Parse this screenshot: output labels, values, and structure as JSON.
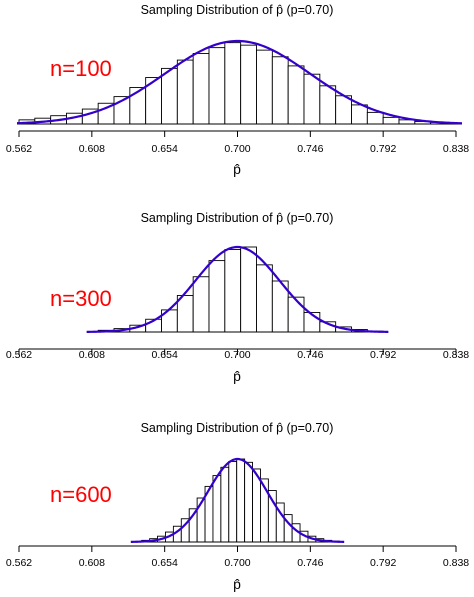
{
  "chart_data": [
    {
      "type": "bar",
      "title": "Sampling Distribution of p̂  (p=0.70)",
      "xlabel": "p̂",
      "n_label": "n=100",
      "n": 100,
      "p": 0.7,
      "xticks": [
        "0.562",
        "0.608",
        "0.654",
        "0.700",
        "0.746",
        "0.792",
        "0.838"
      ],
      "xlim": [
        0.562,
        0.838
      ],
      "bin_width": 0.01,
      "bin_starts": [
        0.562,
        0.572,
        0.582,
        0.592,
        0.602,
        0.612,
        0.622,
        0.632,
        0.642,
        0.652,
        0.662,
        0.672,
        0.682,
        0.692,
        0.702,
        0.712,
        0.722,
        0.732,
        0.742,
        0.752,
        0.762,
        0.772,
        0.782,
        0.792,
        0.802,
        0.812,
        0.822
      ],
      "values": [
        0.05,
        0.07,
        0.1,
        0.13,
        0.18,
        0.25,
        0.33,
        0.44,
        0.56,
        0.67,
        0.77,
        0.85,
        0.92,
        0.98,
        0.95,
        0.89,
        0.81,
        0.7,
        0.6,
        0.46,
        0.34,
        0.23,
        0.14,
        0.08,
        0.05,
        0.03,
        0.02
      ],
      "curve": "normal density"
    },
    {
      "type": "bar",
      "title": "Sampling Distribution of p̂  (p=0.70)",
      "xlabel": "p̂",
      "n_label": "n=300",
      "n": 300,
      "p": 0.7,
      "xticks": [
        "0.562",
        "0.608",
        "0.654",
        "0.700",
        "0.746",
        "0.792",
        "0.838"
      ],
      "xlim": [
        0.562,
        0.838
      ],
      "bin_width": 0.01,
      "bin_starts": [
        0.612,
        0.622,
        0.632,
        0.642,
        0.652,
        0.662,
        0.672,
        0.682,
        0.692,
        0.702,
        0.712,
        0.722,
        0.732,
        0.742,
        0.752,
        0.762,
        0.772,
        0.782
      ],
      "values": [
        0.02,
        0.04,
        0.08,
        0.15,
        0.26,
        0.43,
        0.65,
        0.84,
        0.97,
        1.0,
        0.79,
        0.6,
        0.41,
        0.23,
        0.12,
        0.06,
        0.03,
        0.01
      ],
      "curve": "normal density"
    },
    {
      "type": "bar",
      "title": "Sampling Distribution of p̂  (p=0.70)",
      "xlabel": "p̂",
      "n_label": "n=600",
      "n": 600,
      "p": 0.7,
      "xticks": [
        "0.562",
        "0.608",
        "0.654",
        "0.700",
        "0.746",
        "0.792",
        "0.838"
      ],
      "xlim": [
        0.562,
        0.838
      ],
      "bin_width": 0.005,
      "bin_starts": [
        0.6395,
        0.6445,
        0.6495,
        0.6545,
        0.6595,
        0.6645,
        0.6695,
        0.6745,
        0.6795,
        0.6845,
        0.6895,
        0.6945,
        0.6995,
        0.7045,
        0.7095,
        0.7145,
        0.7195,
        0.7245,
        0.7295,
        0.7345,
        0.7395,
        0.7445,
        0.7495,
        0.7545,
        0.7595
      ],
      "values": [
        0.02,
        0.04,
        0.07,
        0.12,
        0.19,
        0.28,
        0.4,
        0.53,
        0.67,
        0.8,
        0.9,
        0.97,
        1.0,
        0.96,
        0.88,
        0.76,
        0.62,
        0.47,
        0.33,
        0.22,
        0.13,
        0.07,
        0.04,
        0.02,
        0.01
      ],
      "curve": "normal density"
    }
  ],
  "colors": {
    "curve": "#3300cc",
    "n_label": "#ff0000",
    "bar_fill": "#ffffff",
    "bar_stroke": "#000000"
  }
}
